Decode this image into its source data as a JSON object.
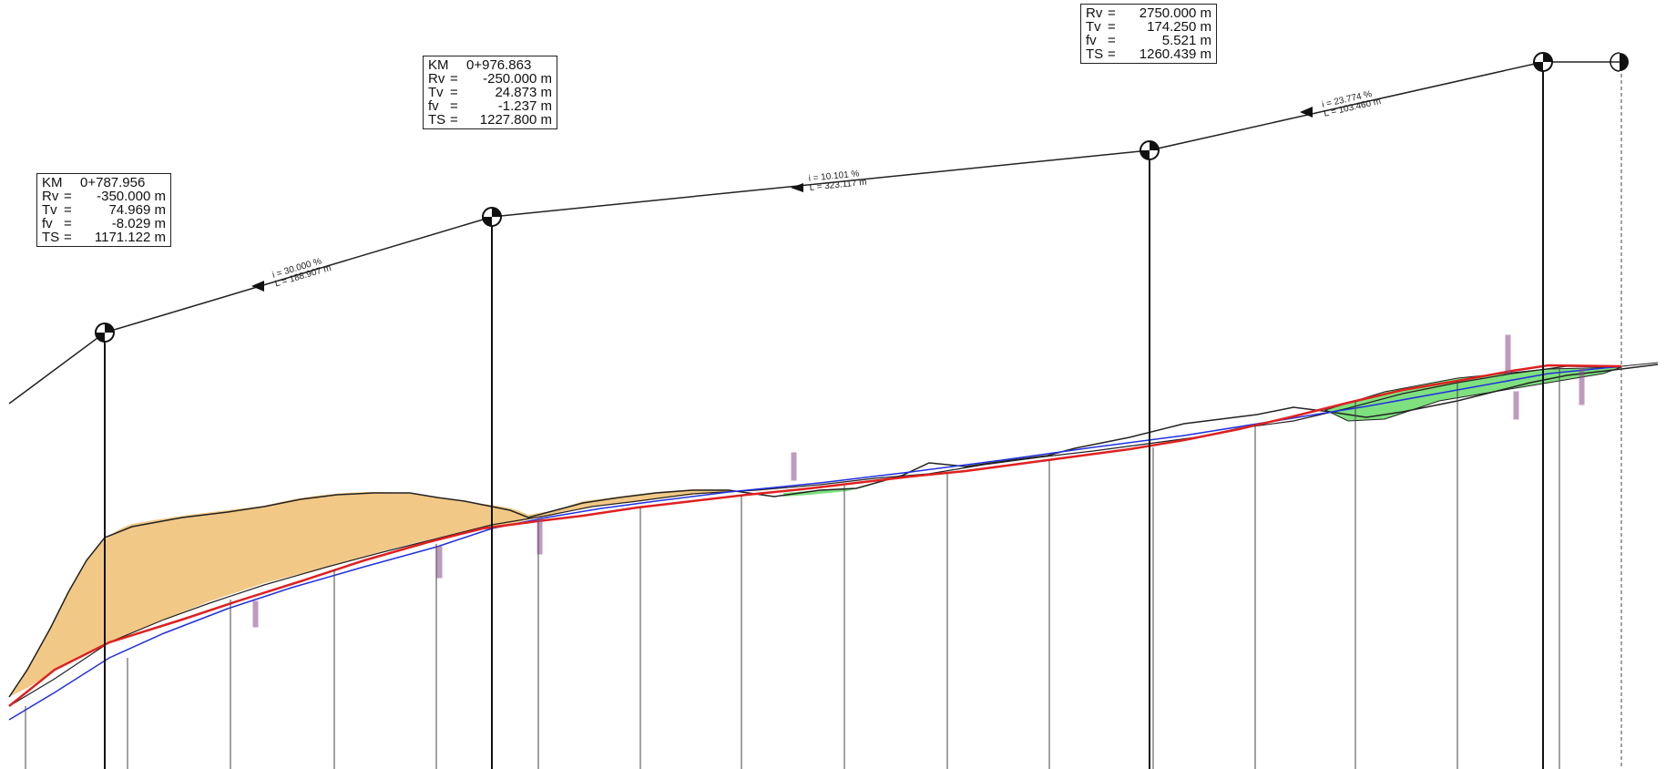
{
  "curve_boxes": [
    {
      "id": "pvi-1",
      "km": "0+787.956",
      "rows": [
        {
          "key": "Rv",
          "value": "-350.000 m"
        },
        {
          "key": "Tv",
          "value": "74.969 m"
        },
        {
          "key": "fv",
          "value": "-8.029 m"
        },
        {
          "key": "TS",
          "value": "1171.122 m"
        }
      ]
    },
    {
      "id": "pvi-2",
      "km": "0+976.863",
      "rows": [
        {
          "key": "Rv",
          "value": "-250.000 m"
        },
        {
          "key": "Tv",
          "value": "24.873 m"
        },
        {
          "key": "fv",
          "value": "-1.237 m"
        },
        {
          "key": "TS",
          "value": "1227.800 m"
        }
      ]
    },
    {
      "id": "pvi-3",
      "km": "",
      "rows": [
        {
          "key": "Rv",
          "value": "2750.000 m"
        },
        {
          "key": "Tv",
          "value": "174.250 m"
        },
        {
          "key": "fv",
          "value": "5.521 m"
        },
        {
          "key": "TS",
          "value": "1260.439 m"
        }
      ]
    }
  ],
  "grade_labels": [
    {
      "id": "g1",
      "grade": "i = 30.000 %",
      "length": "L = 188.907 m"
    },
    {
      "id": "g2",
      "grade": "i = 10.101 %",
      "length": "L = 323.117 m"
    },
    {
      "id": "g3",
      "grade": "i = 23.774 %",
      "length": "L = 103.460 m"
    }
  ],
  "colors": {
    "design_line": "#e02020",
    "alt_line": "#2030e0",
    "ground_line": "#222222",
    "cut_fill": "#f2c886",
    "embankment_fill": "#7ee07e",
    "box_border": "#222222"
  },
  "legend_symbols": [
    "pvi-marker-icon",
    "arrow-icon"
  ]
}
